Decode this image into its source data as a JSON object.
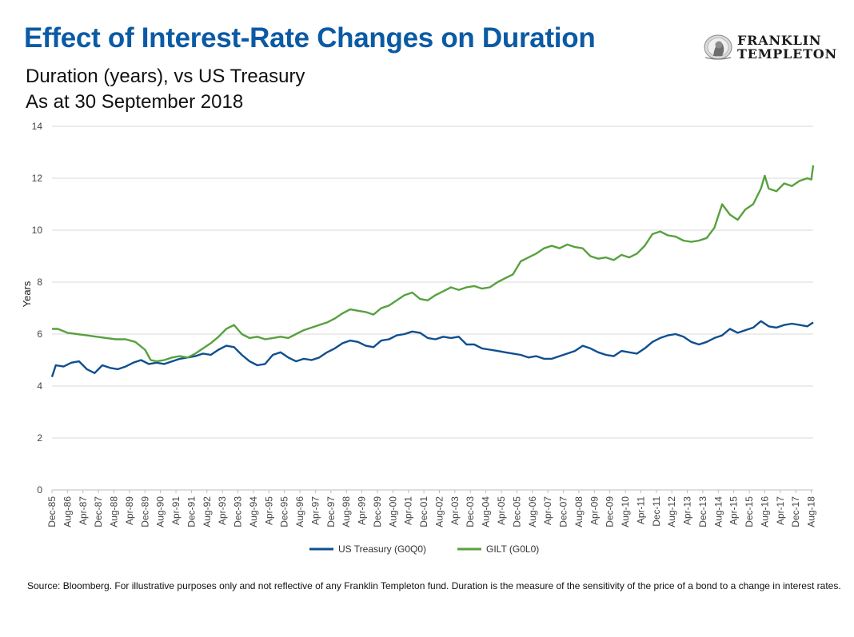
{
  "header": {
    "title": "Effect of Interest-Rate Changes on Duration",
    "subtitle_line1": "Duration (years), vs US Treasury",
    "subtitle_line2": "As at 30 September 2018"
  },
  "logo": {
    "line1": "FRANKLIN",
    "line2": "TEMPLETON",
    "icon": "benjamin-franklin-seal-icon"
  },
  "footnote": "Source: Bloomberg. For illustrative purposes only and not reflective of any Franklin Templeton fund. Duration is the measure of the sensitivity of the price of a bond to a change in interest rates.",
  "chart_data": {
    "type": "line",
    "ylabel": "Years",
    "ylim": [
      0,
      14
    ],
    "yticks": [
      0,
      2,
      4,
      6,
      8,
      10,
      12,
      14
    ],
    "x_tick_labels": [
      "Dec-85",
      "Aug-86",
      "Apr-87",
      "Dec-87",
      "Aug-88",
      "Apr-89",
      "Dec-89",
      "Aug-90",
      "Apr-91",
      "Dec-91",
      "Aug-92",
      "Apr-93",
      "Dec-93",
      "Aug-94",
      "Apr-95",
      "Dec-95",
      "Aug-96",
      "Apr-97",
      "Dec-97",
      "Aug-98",
      "Apr-99",
      "Dec-99",
      "Aug-00",
      "Apr-01",
      "Dec-01",
      "Aug-02",
      "Apr-03",
      "Dec-03",
      "Aug-04",
      "Apr-05",
      "Dec-05",
      "Aug-06",
      "Apr-07",
      "Dec-07",
      "Aug-08",
      "Apr-09",
      "Dec-09",
      "Aug-10",
      "Apr-11",
      "Dec-11",
      "Aug-12",
      "Apr-13",
      "Dec-13",
      "Aug-14",
      "Apr-15",
      "Dec-15",
      "Aug-16",
      "Apr-17",
      "Dec-17",
      "Aug-18"
    ],
    "grid": true,
    "legend": "bottom",
    "x_range": [
      "1985-12",
      "2018-09"
    ],
    "series": [
      {
        "name": "US Treasury (G0Q0)",
        "color": "#0e4f8f",
        "points": [
          [
            "1985-12",
            4.35
          ],
          [
            "1986-02",
            4.8
          ],
          [
            "1986-06",
            4.75
          ],
          [
            "1986-10",
            4.9
          ],
          [
            "1987-02",
            4.95
          ],
          [
            "1987-06",
            4.65
          ],
          [
            "1987-10",
            4.5
          ],
          [
            "1988-02",
            4.8
          ],
          [
            "1988-06",
            4.7
          ],
          [
            "1988-10",
            4.65
          ],
          [
            "1989-02",
            4.75
          ],
          [
            "1989-06",
            4.9
          ],
          [
            "1989-10",
            5.0
          ],
          [
            "1990-02",
            4.85
          ],
          [
            "1990-06",
            4.9
          ],
          [
            "1990-10",
            4.85
          ],
          [
            "1991-02",
            4.95
          ],
          [
            "1991-06",
            5.05
          ],
          [
            "1991-10",
            5.1
          ],
          [
            "1992-02",
            5.15
          ],
          [
            "1992-06",
            5.25
          ],
          [
            "1992-10",
            5.2
          ],
          [
            "1993-02",
            5.4
          ],
          [
            "1993-06",
            5.55
          ],
          [
            "1993-10",
            5.5
          ],
          [
            "1994-02",
            5.2
          ],
          [
            "1994-06",
            4.95
          ],
          [
            "1994-10",
            4.8
          ],
          [
            "1995-02",
            4.85
          ],
          [
            "1995-06",
            5.2
          ],
          [
            "1995-10",
            5.3
          ],
          [
            "1996-02",
            5.1
          ],
          [
            "1996-06",
            4.95
          ],
          [
            "1996-10",
            5.05
          ],
          [
            "1997-02",
            5.0
          ],
          [
            "1997-06",
            5.1
          ],
          [
            "1997-10",
            5.3
          ],
          [
            "1998-02",
            5.45
          ],
          [
            "1998-06",
            5.65
          ],
          [
            "1998-10",
            5.75
          ],
          [
            "1999-02",
            5.7
          ],
          [
            "1999-06",
            5.55
          ],
          [
            "1999-10",
            5.5
          ],
          [
            "2000-02",
            5.75
          ],
          [
            "2000-06",
            5.8
          ],
          [
            "2000-10",
            5.95
          ],
          [
            "2001-02",
            6.0
          ],
          [
            "2001-06",
            6.1
          ],
          [
            "2001-10",
            6.05
          ],
          [
            "2002-02",
            5.85
          ],
          [
            "2002-06",
            5.8
          ],
          [
            "2002-10",
            5.9
          ],
          [
            "2003-02",
            5.85
          ],
          [
            "2003-06",
            5.9
          ],
          [
            "2003-10",
            5.6
          ],
          [
            "2004-02",
            5.6
          ],
          [
            "2004-06",
            5.45
          ],
          [
            "2004-10",
            5.4
          ],
          [
            "2005-02",
            5.35
          ],
          [
            "2005-06",
            5.3
          ],
          [
            "2005-10",
            5.25
          ],
          [
            "2006-02",
            5.2
          ],
          [
            "2006-06",
            5.1
          ],
          [
            "2006-10",
            5.15
          ],
          [
            "2007-02",
            5.05
          ],
          [
            "2007-06",
            5.05
          ],
          [
            "2007-10",
            5.15
          ],
          [
            "2008-02",
            5.25
          ],
          [
            "2008-06",
            5.35
          ],
          [
            "2008-10",
            5.55
          ],
          [
            "2009-02",
            5.45
          ],
          [
            "2009-06",
            5.3
          ],
          [
            "2009-10",
            5.2
          ],
          [
            "2010-02",
            5.15
          ],
          [
            "2010-06",
            5.35
          ],
          [
            "2010-10",
            5.3
          ],
          [
            "2011-02",
            5.25
          ],
          [
            "2011-06",
            5.45
          ],
          [
            "2011-10",
            5.7
          ],
          [
            "2012-02",
            5.85
          ],
          [
            "2012-06",
            5.95
          ],
          [
            "2012-10",
            6.0
          ],
          [
            "2013-02",
            5.9
          ],
          [
            "2013-06",
            5.7
          ],
          [
            "2013-10",
            5.6
          ],
          [
            "2014-02",
            5.7
          ],
          [
            "2014-06",
            5.85
          ],
          [
            "2014-10",
            5.95
          ],
          [
            "2015-02",
            6.2
          ],
          [
            "2015-06",
            6.05
          ],
          [
            "2015-10",
            6.15
          ],
          [
            "2016-02",
            6.25
          ],
          [
            "2016-06",
            6.5
          ],
          [
            "2016-10",
            6.3
          ],
          [
            "2017-02",
            6.25
          ],
          [
            "2017-06",
            6.35
          ],
          [
            "2017-10",
            6.4
          ],
          [
            "2018-02",
            6.35
          ],
          [
            "2018-06",
            6.3
          ],
          [
            "2018-09",
            6.45
          ]
        ]
      },
      {
        "name": "GILT (G0L0)",
        "color": "#57a13f",
        "points": [
          [
            "1985-12",
            6.2
          ],
          [
            "1986-03",
            6.2
          ],
          [
            "1986-08",
            6.05
          ],
          [
            "1987-01",
            6.0
          ],
          [
            "1987-06",
            5.95
          ],
          [
            "1987-11",
            5.9
          ],
          [
            "1988-04",
            5.85
          ],
          [
            "1988-09",
            5.8
          ],
          [
            "1989-02",
            5.8
          ],
          [
            "1989-07",
            5.7
          ],
          [
            "1989-12",
            5.4
          ],
          [
            "1990-03",
            5.0
          ],
          [
            "1990-06",
            4.95
          ],
          [
            "1990-10",
            5.0
          ],
          [
            "1991-02",
            5.1
          ],
          [
            "1991-06",
            5.15
          ],
          [
            "1991-10",
            5.1
          ],
          [
            "1992-02",
            5.25
          ],
          [
            "1992-06",
            5.45
          ],
          [
            "1992-10",
            5.65
          ],
          [
            "1993-02",
            5.9
          ],
          [
            "1993-06",
            6.2
          ],
          [
            "1993-10",
            6.35
          ],
          [
            "1994-02",
            6.0
          ],
          [
            "1994-06",
            5.85
          ],
          [
            "1994-10",
            5.9
          ],
          [
            "1995-02",
            5.8
          ],
          [
            "1995-06",
            5.85
          ],
          [
            "1995-10",
            5.9
          ],
          [
            "1996-02",
            5.85
          ],
          [
            "1996-06",
            6.0
          ],
          [
            "1996-10",
            6.15
          ],
          [
            "1997-02",
            6.25
          ],
          [
            "1997-06",
            6.35
          ],
          [
            "1997-10",
            6.45
          ],
          [
            "1998-02",
            6.6
          ],
          [
            "1998-06",
            6.8
          ],
          [
            "1998-10",
            6.95
          ],
          [
            "1999-02",
            6.9
          ],
          [
            "1999-06",
            6.85
          ],
          [
            "1999-10",
            6.75
          ],
          [
            "2000-02",
            7.0
          ],
          [
            "2000-06",
            7.1
          ],
          [
            "2000-10",
            7.3
          ],
          [
            "2001-02",
            7.5
          ],
          [
            "2001-06",
            7.6
          ],
          [
            "2001-10",
            7.35
          ],
          [
            "2002-02",
            7.3
          ],
          [
            "2002-06",
            7.5
          ],
          [
            "2002-10",
            7.65
          ],
          [
            "2003-02",
            7.8
          ],
          [
            "2003-06",
            7.7
          ],
          [
            "2003-10",
            7.8
          ],
          [
            "2004-02",
            7.85
          ],
          [
            "2004-06",
            7.75
          ],
          [
            "2004-10",
            7.8
          ],
          [
            "2005-02",
            8.0
          ],
          [
            "2005-06",
            8.15
          ],
          [
            "2005-10",
            8.3
          ],
          [
            "2006-02",
            8.8
          ],
          [
            "2006-06",
            8.95
          ],
          [
            "2006-10",
            9.1
          ],
          [
            "2007-02",
            9.3
          ],
          [
            "2007-06",
            9.4
          ],
          [
            "2007-10",
            9.3
          ],
          [
            "2008-02",
            9.45
          ],
          [
            "2008-06",
            9.35
          ],
          [
            "2008-10",
            9.3
          ],
          [
            "2009-02",
            9.0
          ],
          [
            "2009-06",
            8.9
          ],
          [
            "2009-10",
            8.95
          ],
          [
            "2010-02",
            8.85
          ],
          [
            "2010-06",
            9.05
          ],
          [
            "2010-10",
            8.95
          ],
          [
            "2011-02",
            9.1
          ],
          [
            "2011-06",
            9.4
          ],
          [
            "2011-10",
            9.85
          ],
          [
            "2012-02",
            9.95
          ],
          [
            "2012-06",
            9.8
          ],
          [
            "2012-10",
            9.75
          ],
          [
            "2013-02",
            9.6
          ],
          [
            "2013-06",
            9.55
          ],
          [
            "2013-10",
            9.6
          ],
          [
            "2014-02",
            9.7
          ],
          [
            "2014-06",
            10.1
          ],
          [
            "2014-10",
            11.0
          ],
          [
            "2015-02",
            10.6
          ],
          [
            "2015-06",
            10.4
          ],
          [
            "2015-10",
            10.8
          ],
          [
            "2016-02",
            11.0
          ],
          [
            "2016-06",
            11.6
          ],
          [
            "2016-08",
            12.1
          ],
          [
            "2016-10",
            11.6
          ],
          [
            "2017-02",
            11.5
          ],
          [
            "2017-06",
            11.8
          ],
          [
            "2017-10",
            11.7
          ],
          [
            "2018-02",
            11.9
          ],
          [
            "2018-06",
            12.0
          ],
          [
            "2018-08",
            11.95
          ],
          [
            "2018-09",
            12.5
          ]
        ]
      }
    ]
  }
}
